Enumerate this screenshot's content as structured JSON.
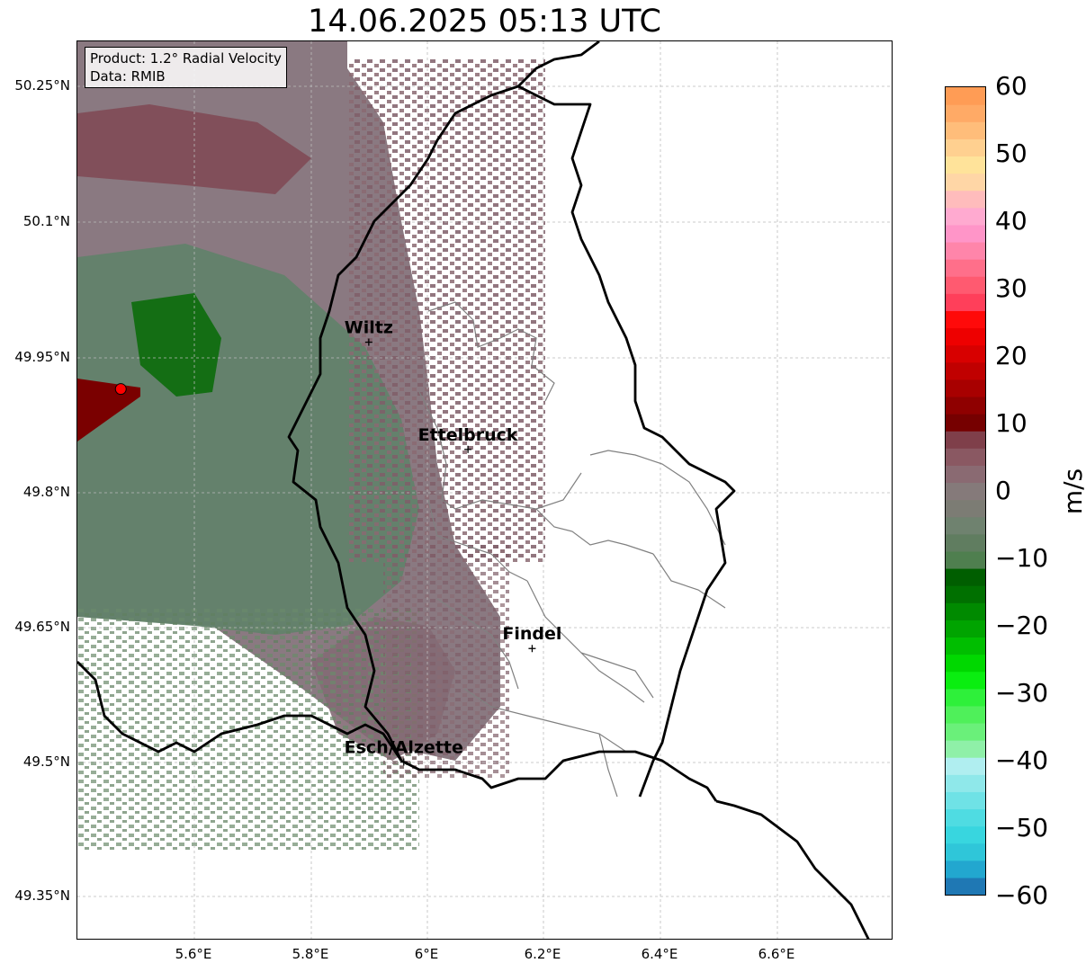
{
  "title": "14.06.2025 05:13 UTC",
  "info_box": {
    "product": "Product: 1.2° Radial Velocity",
    "source": "Data: RMIB"
  },
  "lat_labels": [
    "50.25°N",
    "50.1°N",
    "49.95°N",
    "49.8°N",
    "49.65°N",
    "49.5°N",
    "49.35°N"
  ],
  "lon_labels": [
    "5.6°E",
    "5.8°E",
    "6°E",
    "6.2°E",
    "6.4°E",
    "6.6°E"
  ],
  "cities": [
    {
      "name": "Wiltz",
      "lon": 5.93,
      "lat": 49.966
    },
    {
      "name": "Ettelbruck",
      "lon": 6.1,
      "lat": 49.847
    },
    {
      "name": "Findel",
      "lon": 6.21,
      "lat": 49.626
    },
    {
      "name": "Esch/Alzette",
      "lon": 5.99,
      "lat": 49.5
    }
  ],
  "radar_site": {
    "lon": 5.505,
    "lat": 49.914,
    "color": "#ff0000"
  },
  "colorbar": {
    "unit": "m/s",
    "min": -60,
    "max": 60,
    "tick_labels": [
      "60",
      "50",
      "40",
      "30",
      "20",
      "10",
      "0",
      "−10",
      "−20",
      "−30",
      "−40",
      "−50",
      "−60"
    ],
    "colors_bottom_to_top": [
      "#1f78b4",
      "#22a7cf",
      "#2fc6d9",
      "#38d6df",
      "#4fdce2",
      "#6fe2e6",
      "#8fe8ea",
      "#b0eef0",
      "#8ff0a8",
      "#6af07a",
      "#4ff05a",
      "#2ef03a",
      "#0aee10",
      "#00d800",
      "#00be00",
      "#00a400",
      "#008a00",
      "#007000",
      "#005e00",
      "#4f7f4f",
      "#607d60",
      "#6f826f",
      "#7c7c74",
      "#857a7a",
      "#8a6a72",
      "#8a5862",
      "#7f3f4a",
      "#760000",
      "#8f0000",
      "#a80000",
      "#c00000",
      "#d80000",
      "#ee0000",
      "#ff0a0a",
      "#ff3f5a",
      "#ff5a70",
      "#ff6f8a",
      "#ff85aa",
      "#ff95c8",
      "#ffaad0",
      "#ffbcbc",
      "#ffd6a6",
      "#ffe39a",
      "#ffd090",
      "#ffbd7a",
      "#ffaa66",
      "#ff9c55"
    ]
  },
  "colors": {
    "border": "#000000",
    "canton_lines": "#808080",
    "grid": "#bbbbbb"
  }
}
